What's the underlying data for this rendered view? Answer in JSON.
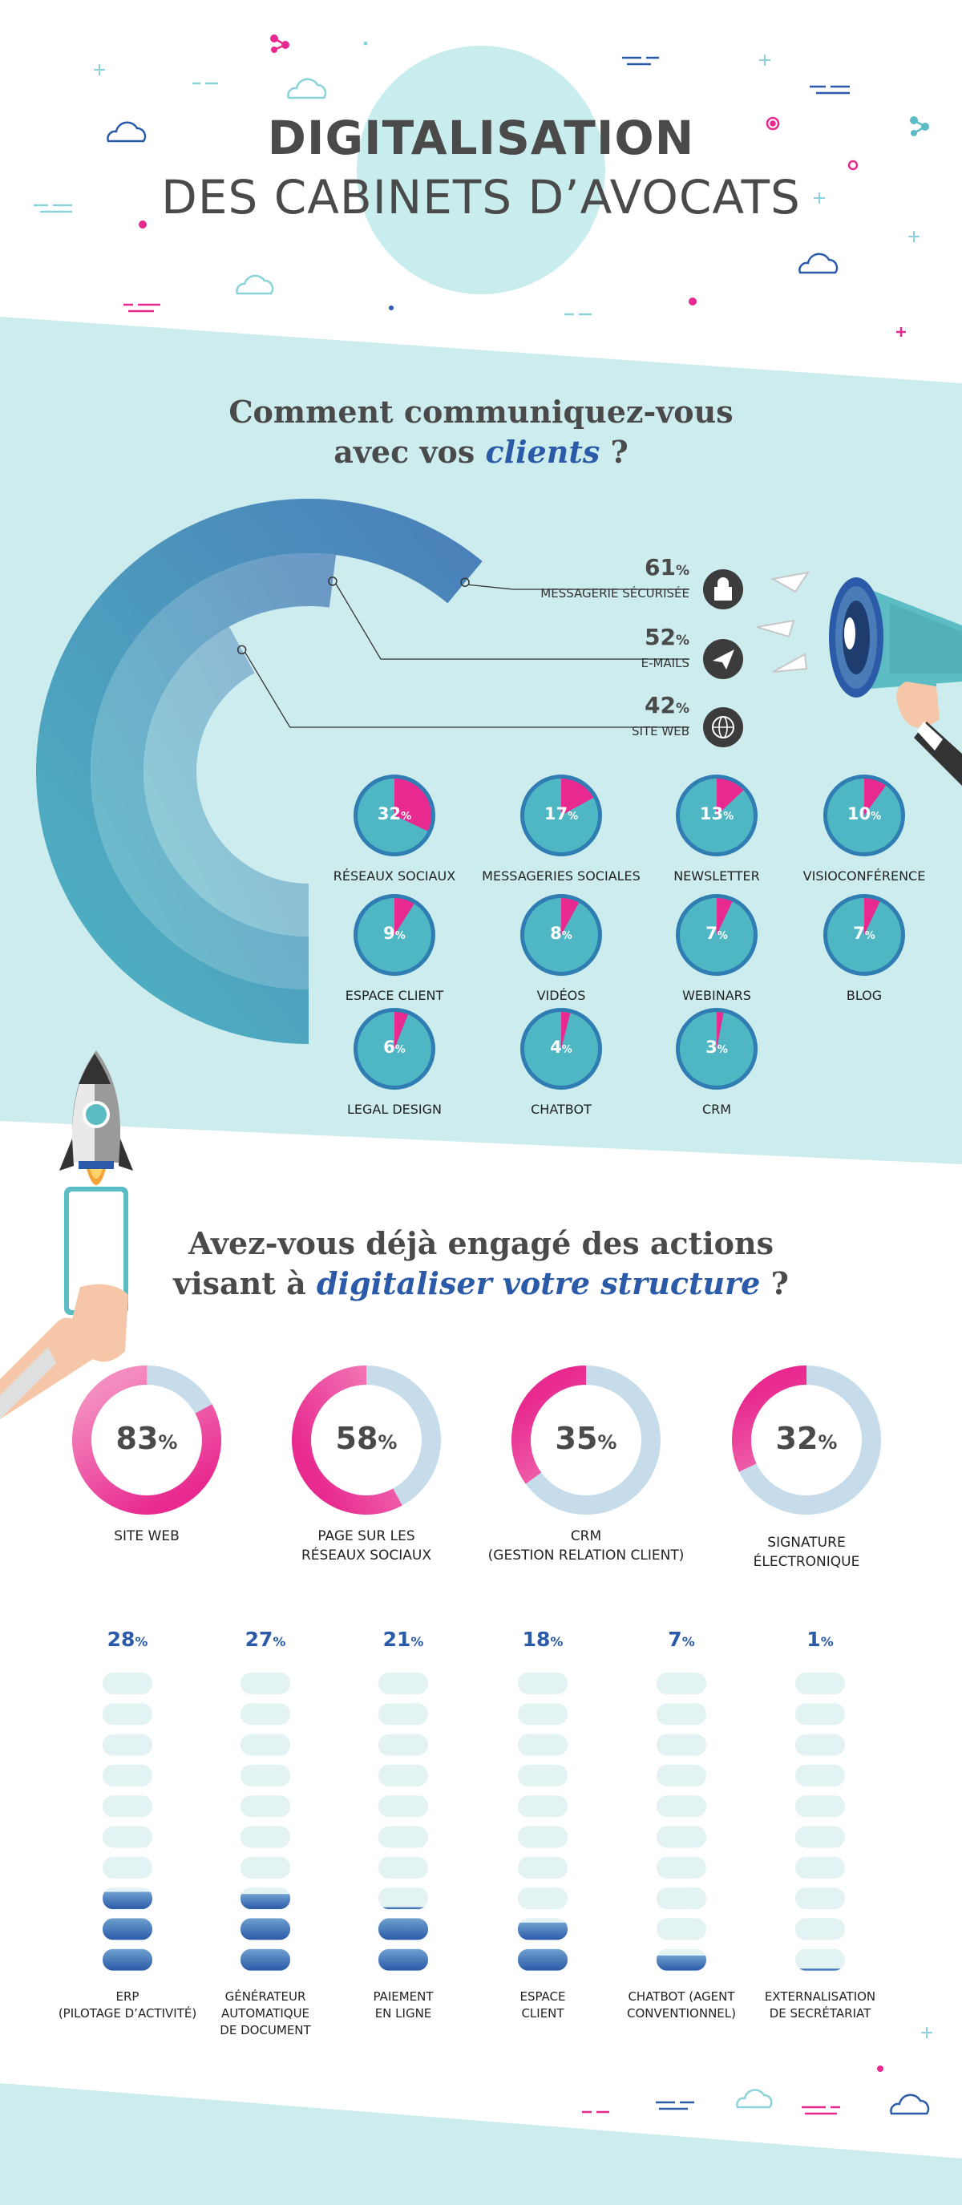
{
  "title": {
    "line1": "DIGITALISATION",
    "line2": "DES CABINETS D’AVOCATS"
  },
  "colors": {
    "teal_bg": "#cdecee",
    "title_circle": "#c9eded",
    "pink": "#e8298f",
    "blue": "#2b5aa8",
    "dark_text": "#4a4a4a"
  },
  "section1": {
    "question_line1": "Comment communiquez-vous",
    "question_line2_pre": "avec vos ",
    "question_line2_em": "clients",
    "question_line2_post": " ?"
  },
  "section2": {
    "question_line1": "Avez-vous déjà engagé des actions",
    "question_line2_pre": "visant à ",
    "question_line2_em": "digitaliser votre structure",
    "question_line2_post": " ?"
  },
  "pct_sign": "%",
  "chart_data": [
    {
      "type": "radial bar",
      "channels": [
        {
          "label": "MESSAGERIE SÉCURISÉE",
          "value": 61,
          "icon": "lock-icon"
        },
        {
          "label": "E-MAILS",
          "value": 52,
          "icon": "paper-plane-icon"
        },
        {
          "label": "SITE WEB",
          "value": 42,
          "icon": "globe-icon"
        }
      ]
    },
    {
      "type": "pie",
      "items": [
        {
          "label": "RÉSEAUX SOCIAUX",
          "value": 32
        },
        {
          "label": "MESSAGERIES SOCIALES",
          "value": 17
        },
        {
          "label": "NEWSLETTER",
          "value": 13
        },
        {
          "label": "VISIOCONFÉRENCE",
          "value": 10
        },
        {
          "label": "ESPACE CLIENT",
          "value": 9
        },
        {
          "label": "VIDÉOS",
          "value": 8
        },
        {
          "label": "WEBINARS",
          "value": 7
        },
        {
          "label": "BLOG",
          "value": 7
        },
        {
          "label": "LEGAL DESIGN",
          "value": 6
        },
        {
          "label": "CHATBOT",
          "value": 4
        },
        {
          "label": "CRM",
          "value": 3
        }
      ]
    },
    {
      "type": "donut",
      "items": [
        {
          "label": "SITE WEB",
          "value": 83
        },
        {
          "label": "PAGE SUR LES\nRÉSEAUX SOCIAUX",
          "value": 58
        },
        {
          "label": "CRM\n(GESTION RELATION CLIENT)",
          "value": 35
        },
        {
          "label": "SIGNATURE\nÉLECTRONIQUE",
          "value": 32
        }
      ]
    },
    {
      "type": "bar",
      "segments_per_bar": 10,
      "items": [
        {
          "label": "ERP\n(PILOTAGE D’ACTIVITÉ)",
          "value": 28
        },
        {
          "label": "GÉNÉRATEUR\nAUTOMATIQUE\nDE DOCUMENT",
          "value": 27
        },
        {
          "label": "PAIEMENT\nEN LIGNE",
          "value": 21
        },
        {
          "label": "ESPACE\nCLIENT",
          "value": 18
        },
        {
          "label": "CHATBOT (AGENT\nCONVENTIONNEL)",
          "value": 7
        },
        {
          "label": "EXTERNALISATION\nDE SECRÉTARIAT",
          "value": 1
        }
      ]
    }
  ]
}
